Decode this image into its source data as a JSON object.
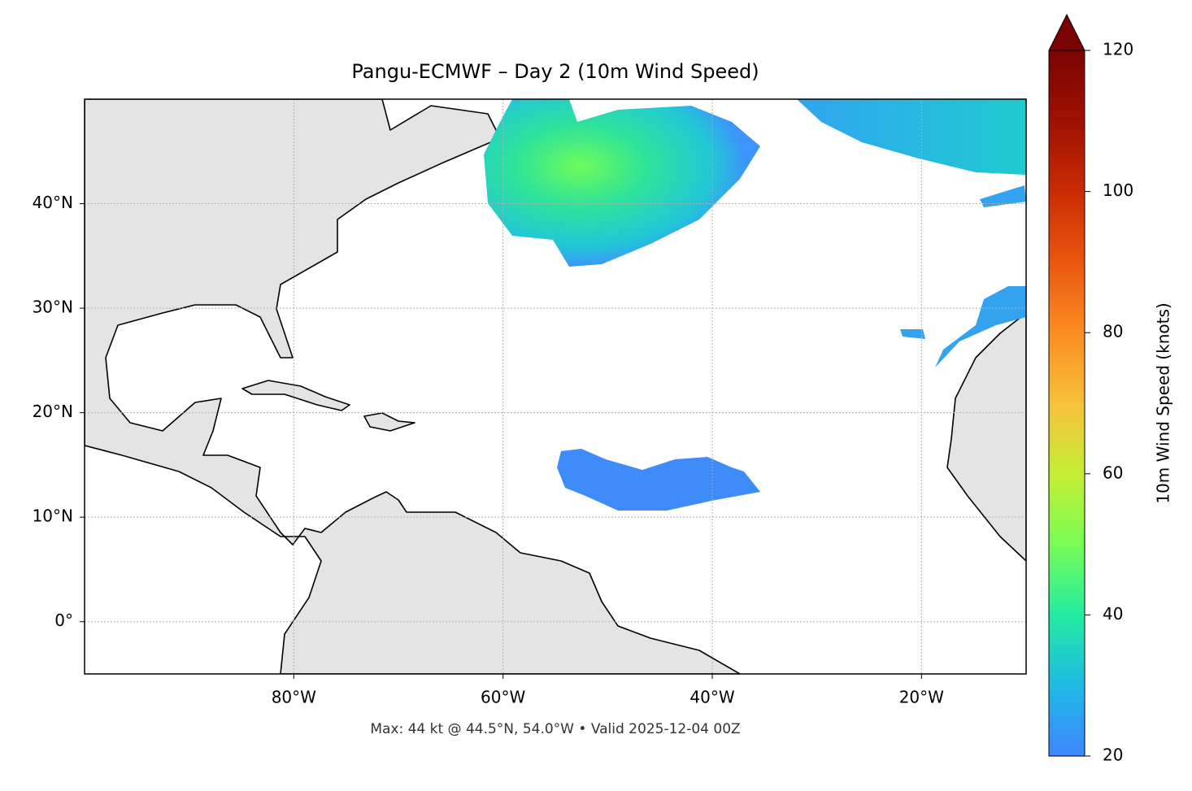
{
  "chart_data": {
    "type": "map",
    "title": "Pangu-ECMWF – Day 2 (10m Wind Speed)",
    "footer": "Max: 44 kt @ 44.5°N, 54.0°W • Valid 2025-12-04 00Z",
    "xlim": [
      -100,
      -10
    ],
    "ylim": [
      -5,
      50
    ],
    "xticks": [
      {
        "value": -80,
        "label": "80°W"
      },
      {
        "value": -60,
        "label": "60°W"
      },
      {
        "value": -40,
        "label": "40°W"
      },
      {
        "value": -20,
        "label": "20°W"
      }
    ],
    "yticks": [
      {
        "value": 0,
        "label": "0°"
      },
      {
        "value": 10,
        "label": "10°N"
      },
      {
        "value": 20,
        "label": "20°N"
      },
      {
        "value": 30,
        "label": "30°N"
      },
      {
        "value": 40,
        "label": "40°N"
      }
    ],
    "grid": true,
    "colorbar": {
      "label": "10m Wind Speed (knots)",
      "lim": [
        20,
        120
      ],
      "ticks": [
        20,
        40,
        60,
        80,
        100,
        120
      ]
    }
  }
}
